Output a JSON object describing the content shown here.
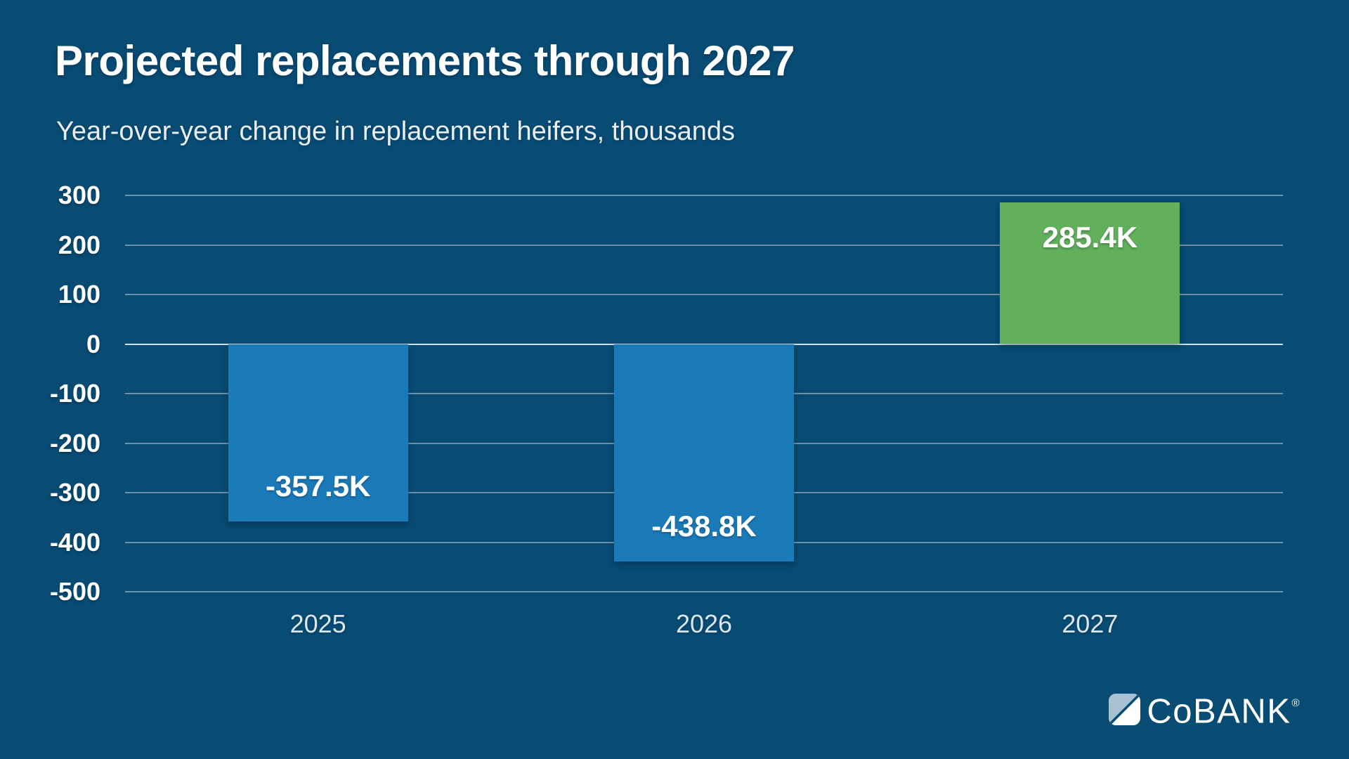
{
  "header": {
    "title": "Projected replacements through 2027",
    "subtitle": "Year-over-year change in replacement heifers, thousands"
  },
  "chart_data": {
    "type": "bar",
    "title": "Projected replacements through 2027",
    "subtitle": "Year-over-year change in replacement heifers, thousands",
    "categories": [
      "2025",
      "2026",
      "2027"
    ],
    "values": [
      -357.5,
      -438.8,
      285.4
    ],
    "value_labels": [
      "-357.5K",
      "-438.8K",
      "285.4K"
    ],
    "unit": "thousands",
    "xlabel": "",
    "ylabel": "Year-over-year change in replacement heifers, thousands",
    "ylim": [
      -500,
      300
    ],
    "yticks": [
      300,
      200,
      100,
      0,
      -100,
      -200,
      -300,
      -400,
      -500
    ],
    "grid": true,
    "legend": false,
    "negative_color": "#1B7AB8",
    "positive_color": "#63B05C"
  },
  "colors": {
    "background": "#084B73",
    "bar_blue": "#1B7AB8",
    "bar_green": "#63B05C",
    "gridline": "#BECDD8",
    "text": "#FFFFFF",
    "logo_accent": "#A9C2D3"
  },
  "logo": {
    "wordmark": "CoBANK",
    "registered": "®"
  }
}
